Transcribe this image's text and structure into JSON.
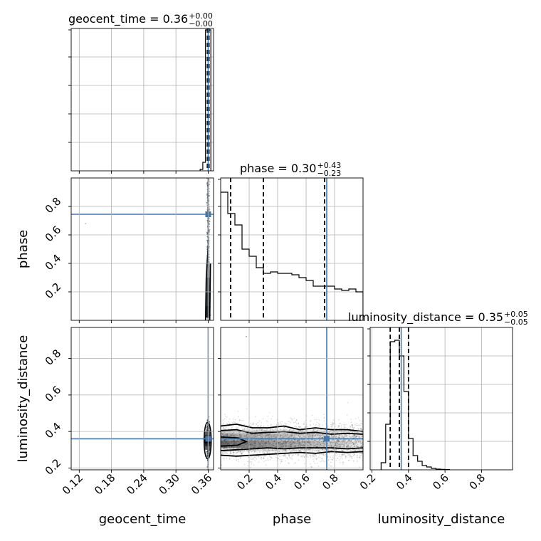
{
  "chart_data": {
    "type": "corner",
    "grid": true,
    "truth_color": "#4477aa",
    "data_color": "#000000",
    "parameters": [
      {
        "name": "geocent_time",
        "label": "geocent_time",
        "range": [
          0.105,
          0.37
        ],
        "ticks": [
          "0.12",
          "0.18",
          "0.24",
          "0.30",
          "0.36"
        ],
        "truth": 0.36
      },
      {
        "name": "phase",
        "label": "phase",
        "range": [
          0.0,
          1.0
        ],
        "ticks": [
          "0.2",
          "0.4",
          "0.6",
          "0.8"
        ],
        "truth": 0.745
      },
      {
        "name": "luminosity_distance",
        "label": "luminosity_distance",
        "range": [
          0.19,
          0.97
        ],
        "ticks": [
          "0.2",
          "0.4",
          "0.6",
          "0.8"
        ],
        "truth": 0.36
      }
    ],
    "titles": [
      {
        "param": "geocent_time",
        "prefix": "geocent_time = 0.36",
        "upper": "+0.00",
        "lower": "−0.00"
      },
      {
        "param": "phase",
        "prefix": "phase = 0.30",
        "upper": "+0.43",
        "lower": "−0.23"
      },
      {
        "param": "luminosity_distance",
        "prefix": "luminosity_distance = 0.35",
        "upper": "+0.05",
        "lower": "−0.05"
      }
    ],
    "quantiles": {
      "geocent_time": [
        0.3585,
        0.36,
        0.3615
      ],
      "phase": [
        0.07,
        0.3,
        0.73
      ],
      "luminosity_distance": [
        0.3,
        0.35,
        0.4
      ]
    },
    "histograms": {
      "geocent_time": {
        "edges": [
          0.345,
          0.35,
          0.355,
          0.36,
          0.365
        ],
        "counts": [
          0.01,
          0.06,
          0.99,
          0.99
        ]
      },
      "phase": {
        "edges": [
          0.0,
          0.05,
          0.1,
          0.15,
          0.2,
          0.25,
          0.3,
          0.35,
          0.4,
          0.45,
          0.5,
          0.55,
          0.6,
          0.65,
          0.7,
          0.75,
          0.8,
          0.85,
          0.9,
          0.95,
          1.0
        ],
        "counts": [
          0.9,
          0.75,
          0.67,
          0.5,
          0.45,
          0.37,
          0.33,
          0.34,
          0.33,
          0.33,
          0.32,
          0.3,
          0.28,
          0.24,
          0.24,
          0.24,
          0.22,
          0.21,
          0.22,
          0.2
        ]
      },
      "luminosity_distance": {
        "edges": [
          0.25,
          0.275,
          0.3,
          0.325,
          0.35,
          0.375,
          0.4,
          0.425,
          0.45,
          0.475,
          0.5,
          0.525,
          0.55,
          0.575,
          0.6,
          0.625
        ],
        "counts": [
          0.05,
          0.32,
          0.9,
          0.91,
          0.8,
          0.55,
          0.22,
          0.1,
          0.06,
          0.03,
          0.02,
          0.01,
          0.005,
          0.003,
          0.002
        ]
      }
    }
  }
}
